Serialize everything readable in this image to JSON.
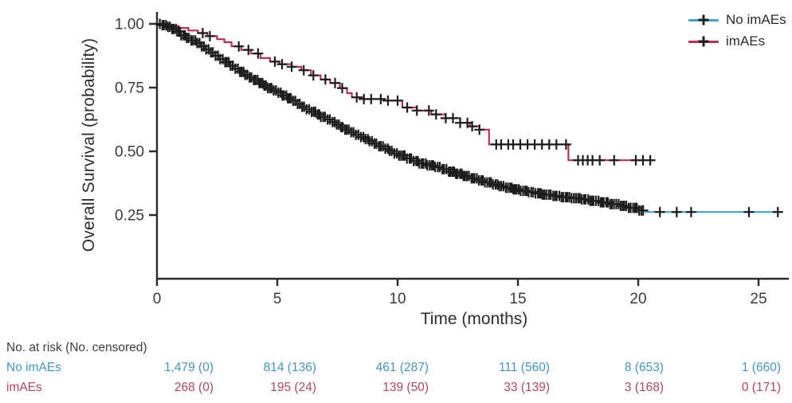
{
  "figure": {
    "background": "#ffffff"
  },
  "colors": {
    "no_imaes_blue": "#45A1C8",
    "imaes_red": "#B82F56",
    "risk_blue_text": "#4495BC",
    "risk_red_text": "#B24560",
    "censor_black": "#1d1d1d",
    "axis": "#2b2b2b",
    "tick_text": "#3a3a3a"
  },
  "legend": {
    "items": [
      {
        "label": "No imAEs",
        "color": "#45A1C8"
      },
      {
        "label": "imAEs",
        "color": "#B82F56"
      }
    ]
  },
  "chart_data": {
    "type": "line",
    "subtype": "kaplan-meier-step-survival",
    "title": "",
    "xlabel": "Time (months)",
    "ylabel": "Overall Survival (probability)",
    "x_axis": {
      "ticks": [
        0,
        5,
        10,
        15,
        20,
        25
      ],
      "tick_labels": [
        "0",
        "5",
        "10",
        "15",
        "20",
        "25"
      ],
      "range": [
        0,
        26.3
      ]
    },
    "y_axis": {
      "tick_values": [
        1.0,
        0.75,
        0.5,
        0.25
      ],
      "tick_labels": [
        "1.00",
        "0.75",
        "0.50",
        "0.25"
      ],
      "range": [
        0,
        1.05
      ]
    },
    "grid": false,
    "legend_position": "top-right",
    "series": [
      {
        "name": "No imAEs",
        "color": "#45A1C8",
        "steps": [
          [
            0,
            1.0
          ],
          [
            0.2,
            0.995
          ],
          [
            0.4,
            0.988
          ],
          [
            0.6,
            0.98
          ],
          [
            0.8,
            0.97
          ],
          [
            1.0,
            0.955
          ],
          [
            1.2,
            0.945
          ],
          [
            1.4,
            0.935
          ],
          [
            1.6,
            0.925
          ],
          [
            1.8,
            0.912
          ],
          [
            2.0,
            0.9
          ],
          [
            2.2,
            0.888
          ],
          [
            2.4,
            0.875
          ],
          [
            2.6,
            0.862
          ],
          [
            2.8,
            0.85
          ],
          [
            3.0,
            0.836
          ],
          [
            3.2,
            0.824
          ],
          [
            3.4,
            0.812
          ],
          [
            3.6,
            0.8
          ],
          [
            3.8,
            0.79
          ],
          [
            4.0,
            0.78
          ],
          [
            4.2,
            0.768
          ],
          [
            4.4,
            0.758
          ],
          [
            4.6,
            0.748
          ],
          [
            4.8,
            0.739
          ],
          [
            5.0,
            0.73
          ],
          [
            5.2,
            0.719
          ],
          [
            5.4,
            0.708
          ],
          [
            5.6,
            0.698
          ],
          [
            5.8,
            0.686
          ],
          [
            6.0,
            0.675
          ],
          [
            6.2,
            0.665
          ],
          [
            6.4,
            0.655
          ],
          [
            6.6,
            0.645
          ],
          [
            6.8,
            0.635
          ],
          [
            7.0,
            0.625
          ],
          [
            7.2,
            0.615
          ],
          [
            7.4,
            0.605
          ],
          [
            7.6,
            0.595
          ],
          [
            7.8,
            0.585
          ],
          [
            8.0,
            0.575
          ],
          [
            8.2,
            0.565
          ],
          [
            8.4,
            0.556
          ],
          [
            8.6,
            0.548
          ],
          [
            8.8,
            0.54
          ],
          [
            9.0,
            0.53
          ],
          [
            9.2,
            0.52
          ],
          [
            9.4,
            0.51
          ],
          [
            9.6,
            0.502
          ],
          [
            9.8,
            0.492
          ],
          [
            10.0,
            0.483
          ],
          [
            10.3,
            0.472
          ],
          [
            10.6,
            0.462
          ],
          [
            10.9,
            0.452
          ],
          [
            11.2,
            0.445
          ],
          [
            11.5,
            0.438
          ],
          [
            11.8,
            0.43
          ],
          [
            12.1,
            0.42
          ],
          [
            12.4,
            0.412
          ],
          [
            12.7,
            0.403
          ],
          [
            13.0,
            0.394
          ],
          [
            13.3,
            0.386
          ],
          [
            13.6,
            0.378
          ],
          [
            13.9,
            0.37
          ],
          [
            14.2,
            0.363
          ],
          [
            14.5,
            0.357
          ],
          [
            14.8,
            0.351
          ],
          [
            15.1,
            0.345
          ],
          [
            15.4,
            0.34
          ],
          [
            15.7,
            0.335
          ],
          [
            16.0,
            0.33
          ],
          [
            16.4,
            0.325
          ],
          [
            16.8,
            0.32
          ],
          [
            17.2,
            0.316
          ],
          [
            17.6,
            0.312
          ],
          [
            18.0,
            0.306
          ],
          [
            18.4,
            0.3
          ],
          [
            18.8,
            0.293
          ],
          [
            19.2,
            0.286
          ],
          [
            19.6,
            0.278
          ],
          [
            20.0,
            0.268
          ],
          [
            20.3,
            0.262
          ],
          [
            26.0,
            0.262
          ]
        ],
        "censor_dense": {
          "start": 0.12,
          "end": 20.25,
          "spacing": 0.085
        },
        "censor_marks": [
          20.9,
          21.6,
          22.2,
          24.6,
          25.8
        ]
      },
      {
        "name": "imAEs",
        "color": "#B82F56",
        "steps": [
          [
            0,
            1.0
          ],
          [
            0.5,
            0.992
          ],
          [
            0.9,
            0.984
          ],
          [
            1.3,
            0.974
          ],
          [
            1.7,
            0.964
          ],
          [
            2.1,
            0.952
          ],
          [
            2.5,
            0.94
          ],
          [
            2.8,
            0.928
          ],
          [
            3.1,
            0.912
          ],
          [
            3.5,
            0.898
          ],
          [
            3.9,
            0.884
          ],
          [
            4.3,
            0.866
          ],
          [
            4.7,
            0.852
          ],
          [
            5.1,
            0.842
          ],
          [
            5.6,
            0.832
          ],
          [
            6.0,
            0.818
          ],
          [
            6.4,
            0.798
          ],
          [
            6.8,
            0.782
          ],
          [
            7.2,
            0.768
          ],
          [
            7.6,
            0.748
          ],
          [
            7.9,
            0.728
          ],
          [
            8.1,
            0.712
          ],
          [
            8.6,
            0.705
          ],
          [
            9.4,
            0.699
          ],
          [
            10.2,
            0.672
          ],
          [
            10.8,
            0.66
          ],
          [
            11.4,
            0.645
          ],
          [
            12.0,
            0.63
          ],
          [
            12.6,
            0.612
          ],
          [
            13.0,
            0.598
          ],
          [
            13.4,
            0.585
          ],
          [
            13.8,
            0.527
          ],
          [
            17.1,
            0.465
          ],
          [
            20.7,
            0.465
          ]
        ],
        "censor_marks": [
          1.9,
          2.2,
          3.4,
          3.8,
          4.2,
          4.9,
          5.2,
          5.6,
          6.1,
          6.5,
          7.0,
          7.4,
          7.7,
          8.3,
          8.6,
          8.9,
          9.3,
          9.6,
          10.0,
          10.4,
          10.8,
          11.3,
          11.6,
          12.0,
          12.3,
          12.6,
          12.9,
          13.1,
          13.4,
          14.1,
          14.3,
          14.6,
          14.8,
          15.1,
          15.4,
          15.7,
          16.0,
          16.3,
          16.6,
          17.0,
          17.5,
          17.7,
          17.9,
          18.1,
          18.4,
          19.0,
          19.9,
          20.2,
          20.5
        ]
      }
    ]
  },
  "risk_table": {
    "header": "No. at risk (No. censored)",
    "time_points": [
      0,
      5,
      10,
      15,
      20,
      25
    ],
    "rows": [
      {
        "label": "No imAEs",
        "color": "#4495BC",
        "values": [
          "1,479 (0)",
          "814 (136)",
          "461 (287)",
          "111 (560)",
          "8 (653)",
          "1 (660)"
        ]
      },
      {
        "label": "imAEs",
        "color": "#B24560",
        "values": [
          "268 (0)",
          "195 (24)",
          "139 (50)",
          "33 (139)",
          "3 (168)",
          "0 (171)"
        ]
      }
    ]
  }
}
